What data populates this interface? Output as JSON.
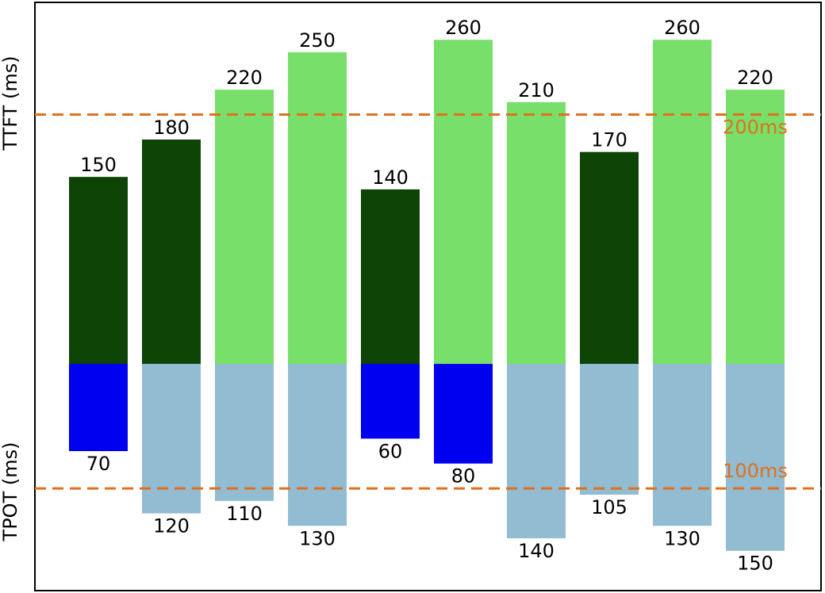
{
  "chart_data": {
    "type": "diverging-bar",
    "series": [
      {
        "name": "TTFT (ms)",
        "direction": "up",
        "values": [
          150,
          180,
          220,
          250,
          140,
          260,
          210,
          170,
          260,
          220
        ],
        "ylim": [
          0,
          290
        ],
        "threshold": {
          "value": 200,
          "label": "200ms"
        },
        "color_within": "#0f4407",
        "color_over": "#78e06a"
      },
      {
        "name": "TPOT (ms)",
        "direction": "down",
        "values": [
          70,
          120,
          110,
          130,
          60,
          80,
          140,
          105,
          130,
          150
        ],
        "ylim": [
          0,
          182
        ],
        "threshold": {
          "value": 100,
          "label": "100ms"
        },
        "color_within": "#0000f0",
        "color_over": "#91bcd1"
      }
    ],
    "threshold_color": "#e0701c"
  }
}
